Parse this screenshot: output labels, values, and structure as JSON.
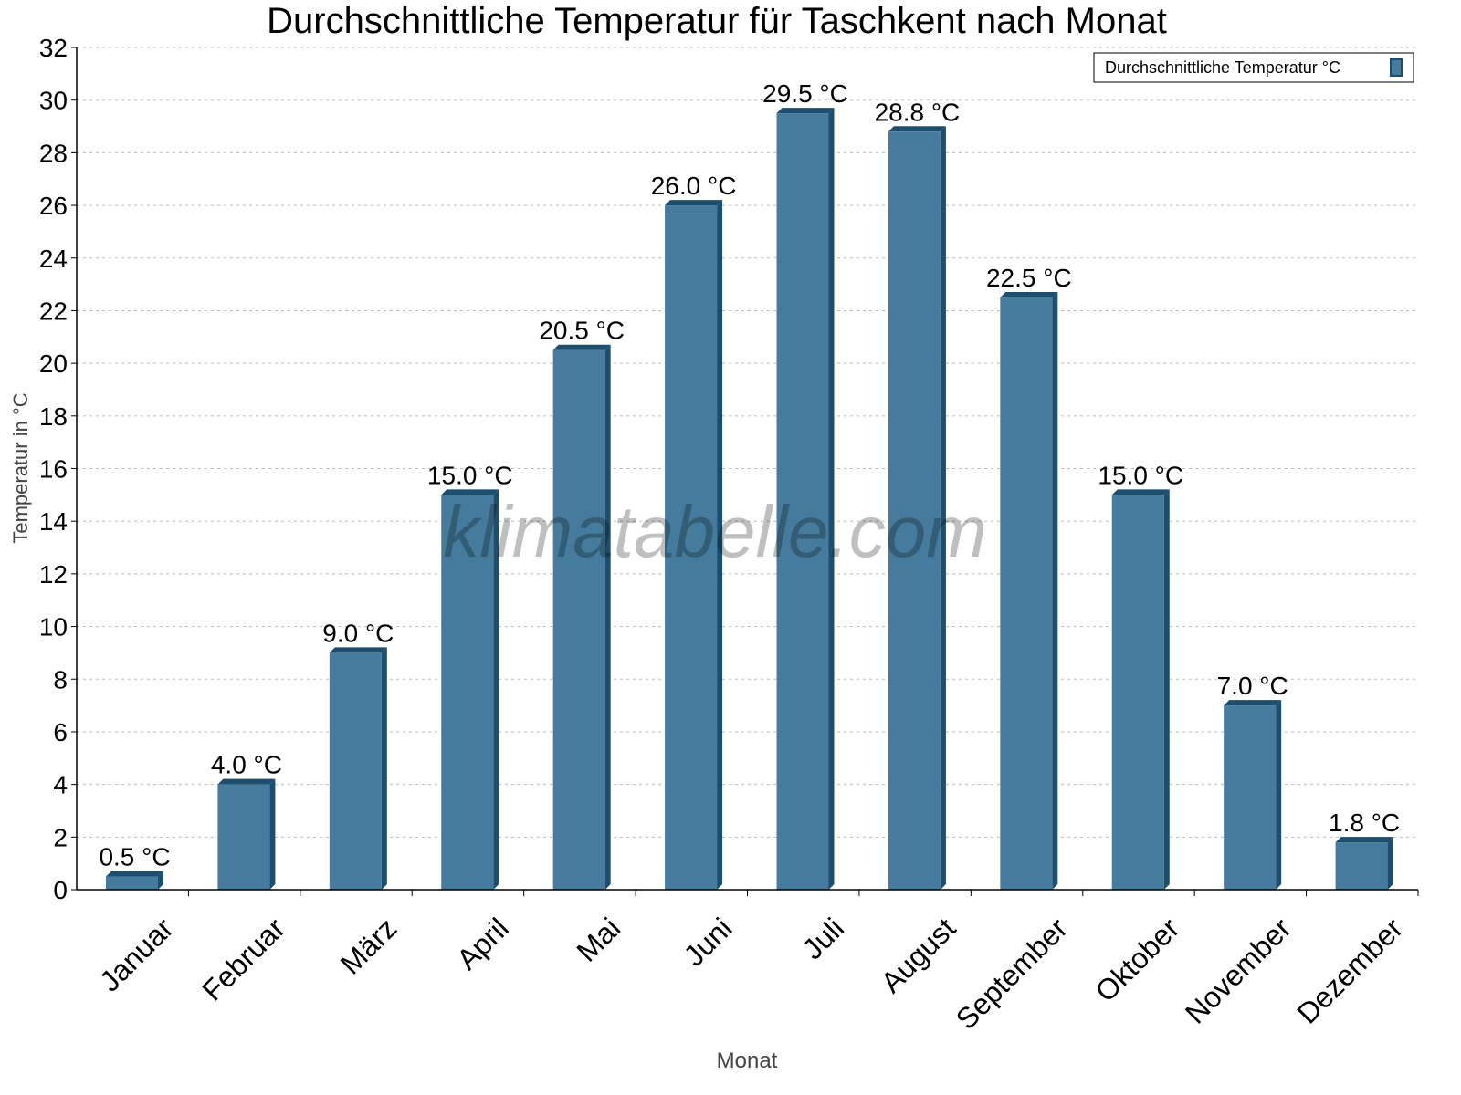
{
  "chart_data": {
    "type": "bar",
    "title": "Durchschnittliche Temperatur für Taschkent nach Monat",
    "xlabel": "Monat",
    "ylabel": "Temperatur in °C",
    "categories": [
      "Januar",
      "Februar",
      "März",
      "April",
      "Mai",
      "Juni",
      "Juli",
      "August",
      "September",
      "Oktober",
      "November",
      "Dezember"
    ],
    "series": [
      {
        "name": "Durchschnittliche Temperatur °C",
        "values": [
          0.5,
          4.0,
          9.0,
          15.0,
          20.5,
          26.0,
          29.5,
          28.8,
          22.5,
          15.0,
          7.0,
          1.8
        ],
        "labels": [
          "0.5 °C",
          "4.0 °C",
          "9.0 °C",
          "15.0 °C",
          "20.5 °C",
          "26.0 °C",
          "29.5 °C",
          "28.8 °C",
          "22.5 °C",
          "15.0 °C",
          "7.0 °C",
          "1.8 °C"
        ]
      }
    ],
    "ylim": [
      0,
      32
    ],
    "yticks": [
      0,
      2,
      4,
      6,
      8,
      10,
      12,
      14,
      16,
      18,
      20,
      22,
      24,
      26,
      28,
      30,
      32
    ],
    "grid": true,
    "legend_position": "top-right",
    "colors": {
      "bar": "#457b9d",
      "bar_side": "#1d4e6e"
    },
    "watermark": "klimatabelle.com"
  }
}
